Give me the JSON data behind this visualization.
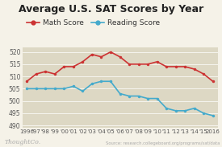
{
  "title": "Average U.S. SAT Scores by Year",
  "background_color": "#f5f2e8",
  "plot_bg_color": "#ddd8c4",
  "years": [
    "1996",
    "'97",
    "'98",
    "'99",
    "'00",
    "'01",
    "'02",
    "'03",
    "'04",
    "'05",
    "'06",
    "'07",
    "'08",
    "'09",
    "'10",
    "'11",
    "'12",
    "'13",
    "'14",
    "'15",
    "2016"
  ],
  "math_scores": [
    508,
    511,
    512,
    511,
    514,
    514,
    516,
    519,
    518,
    520,
    518,
    515,
    515,
    515,
    516,
    514,
    514,
    514,
    513,
    511,
    508
  ],
  "reading_scores": [
    505,
    505,
    505,
    505,
    505,
    506,
    504,
    507,
    508,
    508,
    503,
    502,
    502,
    501,
    501,
    497,
    496,
    496,
    497,
    495,
    494
  ],
  "math_color": "#cc3333",
  "reading_color": "#44aacc",
  "ylim": [
    489,
    522
  ],
  "yticks": [
    490,
    495,
    500,
    505,
    510,
    515,
    520
  ],
  "title_fontsize": 9,
  "legend_fontsize": 6.5,
  "source_text": "Source: research.collegeboard.org/programs/sat/data",
  "thoughtco_text": "ThoughtCo.",
  "line_width": 1.2,
  "marker_size": 2.5
}
